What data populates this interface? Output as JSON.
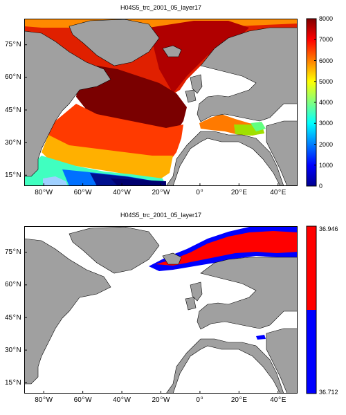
{
  "chart_data": [
    {
      "type": "heatmap",
      "title": "H04S5_trc_2001_05_layer17",
      "x_tick_labels": [
        "80 W",
        "60 W",
        "40 W",
        "20 W",
        "0",
        "20 E",
        "40 E"
      ],
      "y_tick_labels": [
        "75 N",
        "60 N",
        "45 N",
        "30 N",
        "15 N"
      ],
      "x_ticks_deg": [
        -80,
        -60,
        -40,
        -20,
        0,
        20,
        40
      ],
      "y_ticks_deg": [
        75,
        60,
        45,
        30,
        15
      ],
      "xlim_deg": [
        -90,
        50
      ],
      "ylim_deg": [
        10,
        87
      ],
      "colorbar": {
        "colormap": "jet",
        "range": [
          0,
          8000
        ],
        "tick_labels": [
          "0",
          "1000",
          "2000",
          "3000",
          "4000",
          "5000",
          "6000",
          "7000",
          "8000"
        ],
        "tick_values": [
          0,
          1000,
          2000,
          3000,
          4000,
          5000,
          6000,
          7000,
          8000
        ]
      },
      "grid": false,
      "land_color": "#a0a0a0"
    },
    {
      "type": "heatmap",
      "title": "H04S5_trc_2001_05_layer17",
      "x_tick_labels": [
        "80 W",
        "60 W",
        "40 W",
        "20 W",
        "0",
        "20 E",
        "40 E"
      ],
      "y_tick_labels": [
        "75 N",
        "60 N",
        "45 N",
        "30 N",
        "15 N"
      ],
      "x_ticks_deg": [
        -80,
        -60,
        -40,
        -20,
        0,
        20,
        40
      ],
      "y_ticks_deg": [
        75,
        60,
        45,
        30,
        15
      ],
      "xlim_deg": [
        -90,
        50
      ],
      "ylim_deg": [
        10,
        87
      ],
      "colorbar": {
        "colormap": "two-color",
        "colors": [
          "#0000ff",
          "#ff0000"
        ],
        "range": [
          36.712,
          36.946
        ],
        "tick_labels": [
          "36.946",
          "36.712"
        ],
        "tick_values": [
          36.946,
          36.712
        ]
      },
      "grid": false,
      "land_color": "#a0a0a0"
    }
  ]
}
